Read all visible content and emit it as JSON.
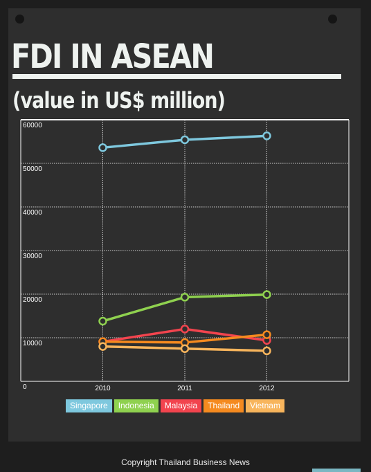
{
  "title": "FDI IN ASEAN",
  "subtitle": "(value in US$ million)",
  "footer": "Copyright  Thailand Business News",
  "chart_data": {
    "type": "line",
    "title": "FDI IN ASEAN",
    "subtitle": "(value in US$ million)",
    "x": [
      2010,
      2011,
      2012
    ],
    "xlim": [
      2009,
      2013
    ],
    "ylim": [
      0,
      60000
    ],
    "yticks": [
      0,
      10000,
      20000,
      30000,
      40000,
      50000,
      60000
    ],
    "grid": true,
    "legend_position": "bottom",
    "series": [
      {
        "name": "Singapore",
        "color": "#7ec8de",
        "values": [
          53600,
          55400,
          56300
        ]
      },
      {
        "name": "Indonesia",
        "color": "#8fd14f",
        "values": [
          13800,
          19300,
          19900
        ]
      },
      {
        "name": "Malaysia",
        "color": "#f2444e",
        "values": [
          9100,
          12000,
          9400
        ]
      },
      {
        "name": "Thailand",
        "color": "#f58a1f",
        "values": [
          9100,
          8900,
          10700
        ]
      },
      {
        "name": "Vietnam",
        "color": "#f8b55c",
        "values": [
          8000,
          7500,
          7000
        ]
      }
    ]
  }
}
